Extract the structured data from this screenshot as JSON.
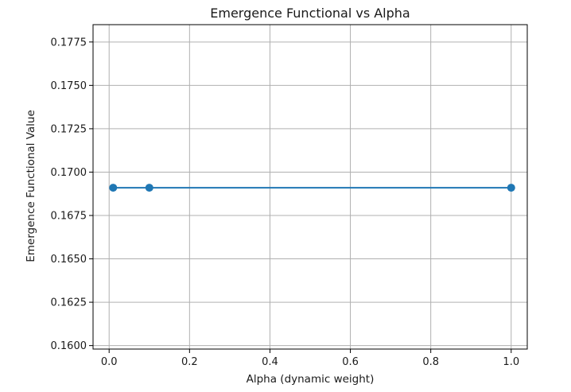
{
  "chart_data": {
    "type": "line",
    "title": "Emergence Functional vs Alpha",
    "xlabel": "Alpha (dynamic weight)",
    "ylabel": "Emergence Functional Value",
    "xlim": [
      -0.04,
      1.04
    ],
    "ylim": [
      0.1598,
      0.1785
    ],
    "xticks": [
      0.0,
      0.2,
      0.4,
      0.6,
      0.8,
      1.0
    ],
    "xtick_labels": [
      "0.0",
      "0.2",
      "0.4",
      "0.6",
      "0.8",
      "1.0"
    ],
    "yticks": [
      0.16,
      0.1625,
      0.165,
      0.1675,
      0.17,
      0.1725,
      0.175,
      0.1775
    ],
    "ytick_labels": [
      "0.1600",
      "0.1625",
      "0.1650",
      "0.1675",
      "0.1700",
      "0.1725",
      "0.1750",
      "0.1775"
    ],
    "grid": true,
    "series": [
      {
        "x": [
          0.01,
          0.1,
          1.0
        ],
        "y": [
          0.1691,
          0.1691,
          0.1691
        ],
        "color": "#1f77b4",
        "marker": "o"
      }
    ]
  }
}
